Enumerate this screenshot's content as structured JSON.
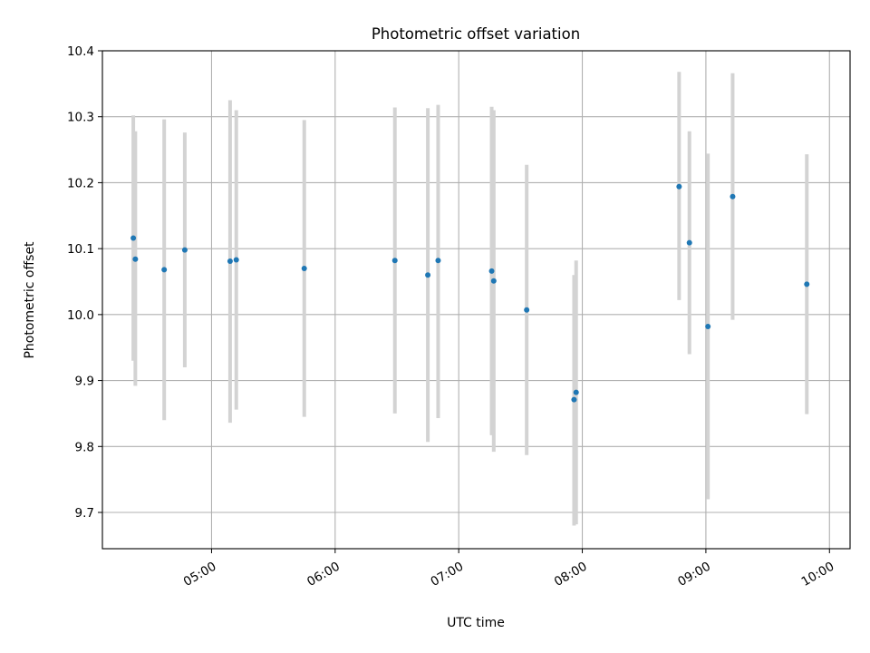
{
  "chart_data": {
    "type": "scatter",
    "title": "Photometric offset variation",
    "xlabel": "UTC time",
    "ylabel": "Photometric offset",
    "x_scale": "time",
    "xlim": [
      "04:07",
      "10:10"
    ],
    "ylim": [
      9.645,
      10.4
    ],
    "grid": true,
    "x_ticks": [
      "05:00",
      "06:00",
      "07:00",
      "08:00",
      "09:00",
      "10:00"
    ],
    "y_ticks": [
      9.7,
      9.8,
      9.9,
      10.0,
      10.1,
      10.2,
      10.3,
      10.4
    ],
    "y_tick_labels": [
      "9.7",
      "9.8",
      "9.9",
      "10.0",
      "10.1",
      "10.2",
      "10.3",
      "10.4"
    ],
    "colors": {
      "points": "#1f77b4",
      "error_bars": "#d3d3d3",
      "grid": "#b0b0b0"
    },
    "points": [
      {
        "time": "04:22",
        "y": 10.116,
        "lo": 9.93,
        "hi": 10.302
      },
      {
        "time": "04:23",
        "y": 10.084,
        "lo": 9.892,
        "hi": 10.278
      },
      {
        "time": "04:37",
        "y": 10.068,
        "lo": 9.84,
        "hi": 10.296
      },
      {
        "time": "04:47",
        "y": 10.098,
        "lo": 9.92,
        "hi": 10.276
      },
      {
        "time": "05:09",
        "y": 10.081,
        "lo": 9.836,
        "hi": 10.325
      },
      {
        "time": "05:12",
        "y": 10.083,
        "lo": 9.856,
        "hi": 10.31
      },
      {
        "time": "05:45",
        "y": 10.07,
        "lo": 9.845,
        "hi": 10.295
      },
      {
        "time": "06:29",
        "y": 10.082,
        "lo": 9.85,
        "hi": 10.314
      },
      {
        "time": "06:45",
        "y": 10.06,
        "lo": 9.807,
        "hi": 10.313
      },
      {
        "time": "06:50",
        "y": 10.082,
        "lo": 9.843,
        "hi": 10.318
      },
      {
        "time": "07:16",
        "y": 10.066,
        "lo": 9.817,
        "hi": 10.315
      },
      {
        "time": "07:17",
        "y": 10.051,
        "lo": 9.792,
        "hi": 10.31
      },
      {
        "time": "07:33",
        "y": 10.007,
        "lo": 9.787,
        "hi": 10.227
      },
      {
        "time": "07:56",
        "y": 9.871,
        "lo": 9.68,
        "hi": 10.06
      },
      {
        "time": "07:57",
        "y": 9.882,
        "lo": 9.682,
        "hi": 10.082
      },
      {
        "time": "08:47",
        "y": 10.194,
        "lo": 10.022,
        "hi": 10.368
      },
      {
        "time": "08:52",
        "y": 10.109,
        "lo": 9.94,
        "hi": 10.278
      },
      {
        "time": "09:01",
        "y": 9.982,
        "lo": 9.72,
        "hi": 10.244
      },
      {
        "time": "09:13",
        "y": 10.179,
        "lo": 9.992,
        "hi": 10.366
      },
      {
        "time": "09:49",
        "y": 10.046,
        "lo": 9.849,
        "hi": 10.243
      }
    ]
  }
}
